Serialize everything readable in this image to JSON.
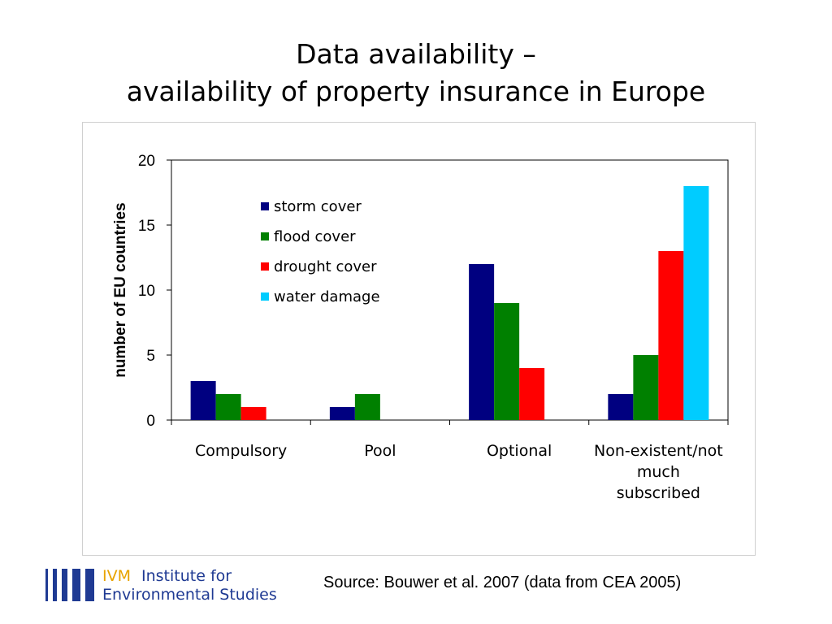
{
  "slide": {
    "title_line1": "Data availability –",
    "title_line2": "availability of property insurance in Europe",
    "source": "Source: Bouwer et al. 2007 (data from CEA 2005)"
  },
  "logo": {
    "acronym": "IVM",
    "name_line1": "Institute for",
    "name_line2": "Environmental Studies",
    "colors": {
      "acronym": "#e8a300",
      "text": "#1f3a93",
      "bars": "#1f3a93"
    }
  },
  "chart_data": {
    "type": "bar",
    "categories": [
      "Compulsory",
      "Pool",
      "Optional",
      "Non-existent/not much subscribed"
    ],
    "category_label_lines": [
      [
        "Compulsory"
      ],
      [
        "Pool"
      ],
      [
        "Optional"
      ],
      [
        "Non-existent/not",
        "much",
        "subscribed"
      ]
    ],
    "series": [
      {
        "name": "storm cover",
        "color": "#000080",
        "values": [
          3,
          1,
          12,
          2
        ]
      },
      {
        "name": "flood cover",
        "color": "#008000",
        "values": [
          2,
          2,
          9,
          5
        ]
      },
      {
        "name": "drought cover",
        "color": "#ff0000",
        "values": [
          1,
          0,
          4,
          13
        ]
      },
      {
        "name": "water damage",
        "color": "#00ccff",
        "values": [
          0,
          0,
          0,
          18
        ]
      }
    ],
    "ylabel_parts": [
      "number of ",
      "EU",
      " countries"
    ],
    "ylim": [
      0,
      20
    ],
    "yticks": [
      0,
      5,
      10,
      15,
      20
    ],
    "legend_position": "top-left inside plot",
    "grid": false
  }
}
